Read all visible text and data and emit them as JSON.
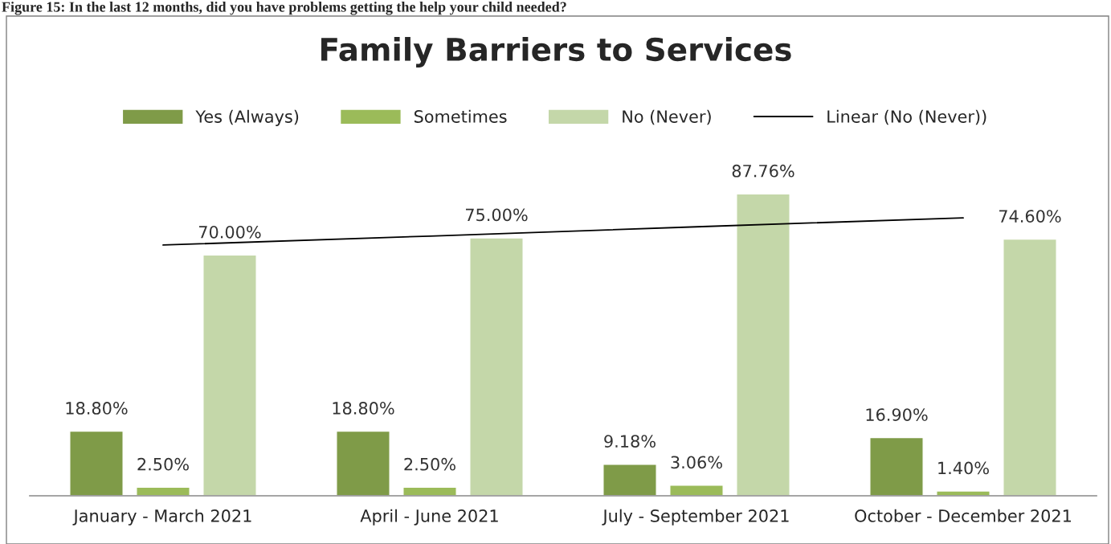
{
  "chart_data": {
    "type": "bar",
    "title": "Family Barriers to Services",
    "annotations": [
      "Figure 15: In the last 12 months, did you have problems getting the help your child needed?"
    ],
    "categories": [
      "January - March 2021",
      "April - June 2021",
      "July - September 2021",
      "October - December 2021"
    ],
    "series": [
      {
        "name": "Yes (Always)",
        "color": "#7f9b48",
        "values": [
          18.8,
          18.8,
          9.18,
          16.9
        ],
        "value_labels": [
          "18.80%",
          "18.80%",
          "9.18%",
          "16.90%"
        ]
      },
      {
        "name": "Sometimes",
        "color": "#9bbb59",
        "values": [
          2.5,
          2.5,
          3.06,
          1.4
        ],
        "value_labels": [
          "2.50%",
          "2.50%",
          "3.06%",
          "1.40%"
        ]
      },
      {
        "name": "No (Never)",
        "color": "#c4d7a9",
        "values": [
          70.0,
          75.0,
          87.76,
          74.6
        ],
        "value_labels": [
          "70.00%",
          "75.00%",
          "87.76%",
          "74.60%"
        ]
      },
      {
        "name": "Linear (No (Never))",
        "type": "line",
        "color": "#000000",
        "values": [
          72.9,
          75.5,
          78.2,
          80.8
        ]
      }
    ],
    "legend": "top",
    "grid": false
  }
}
